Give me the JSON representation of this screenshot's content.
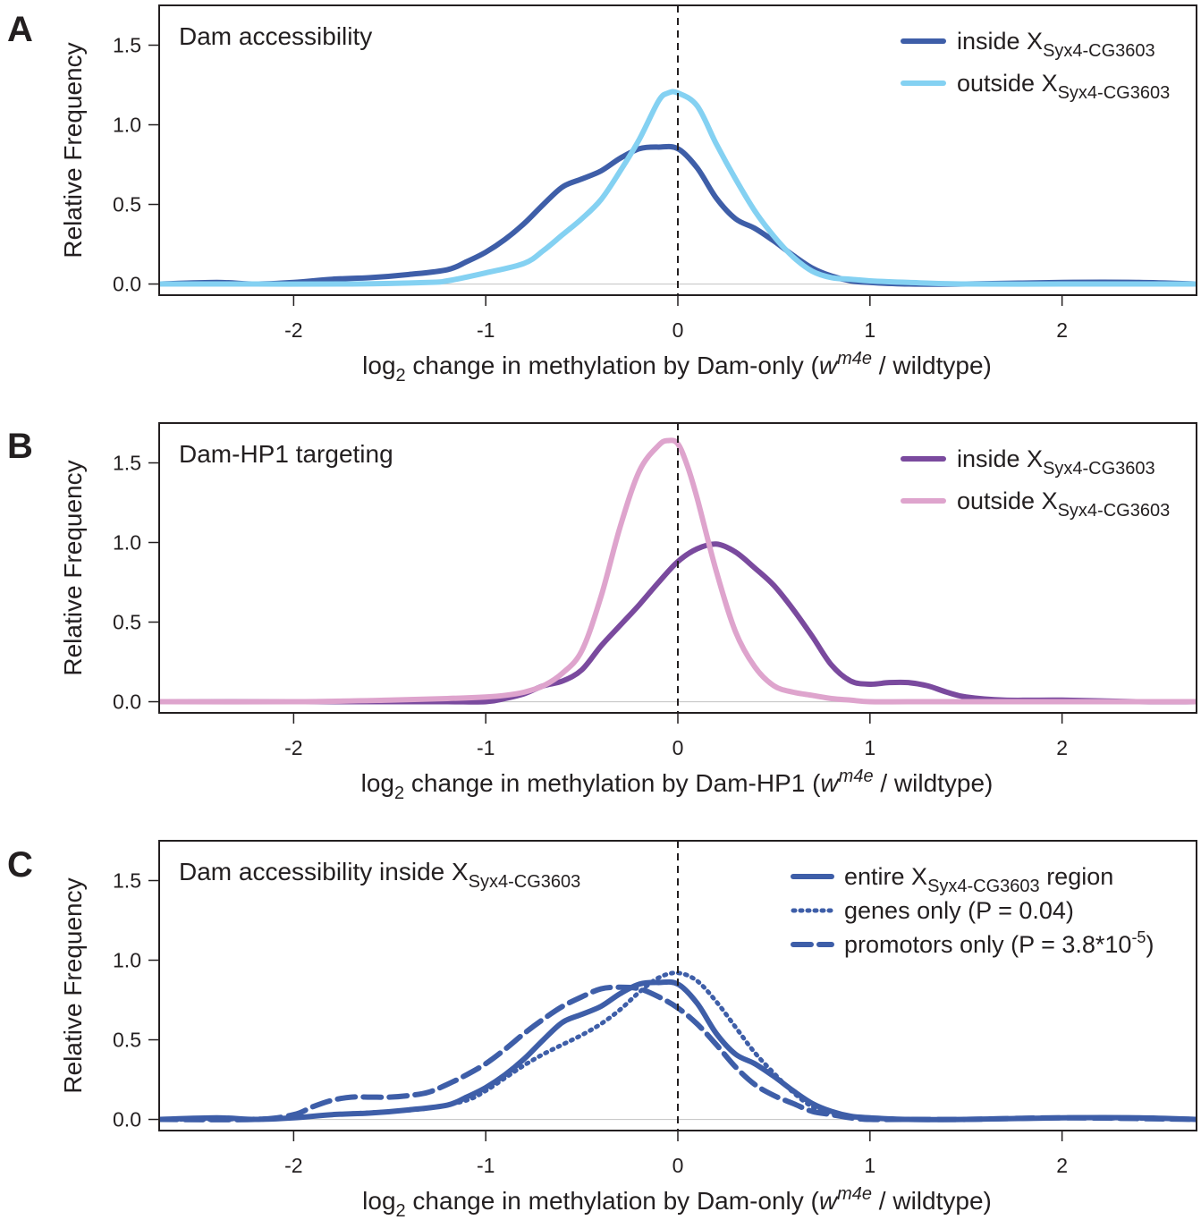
{
  "chart_data": [
    {
      "panel": "A",
      "type": "line",
      "title": "Dam accessibility",
      "title_sub": "",
      "ylabel": "Relative Frequency",
      "xlabel": {
        "pre": "log",
        "sub": "2",
        "mid": " change in methylation by Dam-only (",
        "italic": "w",
        "sup": "m4e",
        "post": " / wildtype)"
      },
      "xlim": [
        -2.7,
        2.7
      ],
      "ylim": [
        -0.07,
        1.75
      ],
      "xticks": [
        "-2",
        "-1",
        "0",
        "1",
        "2"
      ],
      "yticks": [
        "0.0",
        "0.5",
        "1.0",
        "1.5"
      ],
      "vline_x": 0,
      "legend_position": "top-right",
      "series": [
        {
          "name": "inside X",
          "name_sub": "Syx4-CG3603",
          "name_post": "",
          "color": "#3e5ea8",
          "dash": "solid",
          "x": [
            -2.7,
            -2.4,
            -2.2,
            -2.0,
            -1.8,
            -1.6,
            -1.4,
            -1.2,
            -1.1,
            -1.0,
            -0.9,
            -0.8,
            -0.7,
            -0.6,
            -0.5,
            -0.4,
            -0.3,
            -0.2,
            -0.1,
            0.0,
            0.1,
            0.2,
            0.3,
            0.4,
            0.5,
            0.6,
            0.7,
            0.8,
            0.9,
            1.0,
            1.2,
            1.5,
            2.0,
            2.4,
            2.7
          ],
          "y": [
            0.0,
            0.01,
            0.0,
            0.01,
            0.03,
            0.04,
            0.06,
            0.09,
            0.14,
            0.2,
            0.28,
            0.38,
            0.5,
            0.61,
            0.66,
            0.71,
            0.79,
            0.85,
            0.86,
            0.85,
            0.73,
            0.54,
            0.41,
            0.35,
            0.27,
            0.18,
            0.1,
            0.05,
            0.02,
            0.01,
            0.0,
            0.0,
            0.01,
            0.01,
            0.0
          ]
        },
        {
          "name": "outside X",
          "name_sub": "Syx4-CG3603",
          "name_post": "",
          "color": "#84d1f2",
          "dash": "solid",
          "x": [
            -2.7,
            -2.2,
            -1.7,
            -1.3,
            -1.2,
            -1.0,
            -0.8,
            -0.7,
            -0.6,
            -0.5,
            -0.4,
            -0.3,
            -0.2,
            -0.1,
            -0.05,
            0.0,
            0.1,
            0.2,
            0.3,
            0.4,
            0.5,
            0.6,
            0.7,
            0.8,
            0.9,
            1.0,
            1.2,
            1.5,
            2.0,
            2.4,
            2.7
          ],
          "y": [
            0.0,
            0.0,
            0.0,
            0.01,
            0.02,
            0.07,
            0.13,
            0.21,
            0.31,
            0.41,
            0.53,
            0.71,
            0.91,
            1.15,
            1.2,
            1.2,
            1.12,
            0.88,
            0.66,
            0.46,
            0.3,
            0.17,
            0.08,
            0.04,
            0.03,
            0.02,
            0.01,
            0.0,
            0.0,
            0.0,
            0.0
          ]
        }
      ]
    },
    {
      "panel": "B",
      "type": "line",
      "title": "Dam-HP1 targeting",
      "title_sub": "",
      "ylabel": "Relative Frequency",
      "xlabel": {
        "pre": "log",
        "sub": "2",
        "mid": " change in methylation by Dam-HP1 (",
        "italic": "w",
        "sup": "m4e",
        "post": " / wildtype)"
      },
      "xlim": [
        -2.7,
        2.7
      ],
      "ylim": [
        -0.07,
        1.75
      ],
      "xticks": [
        "-2",
        "-1",
        "0",
        "1",
        "2"
      ],
      "yticks": [
        "0.0",
        "0.5",
        "1.0",
        "1.5"
      ],
      "vline_x": 0,
      "legend_position": "top-right",
      "series": [
        {
          "name": "inside X",
          "name_sub": "Syx4-CG3603",
          "name_post": "",
          "color": "#7a4a9e",
          "dash": "solid",
          "x": [
            -2.7,
            -2.0,
            -1.5,
            -1.2,
            -1.0,
            -0.9,
            -0.8,
            -0.7,
            -0.6,
            -0.5,
            -0.4,
            -0.3,
            -0.2,
            -0.1,
            0.0,
            0.1,
            0.2,
            0.3,
            0.4,
            0.5,
            0.6,
            0.7,
            0.8,
            0.9,
            1.0,
            1.1,
            1.2,
            1.3,
            1.4,
            1.5,
            1.7,
            2.0,
            2.4,
            2.7
          ],
          "y": [
            0.0,
            0.0,
            0.0,
            0.0,
            0.0,
            0.02,
            0.05,
            0.1,
            0.13,
            0.2,
            0.35,
            0.48,
            0.61,
            0.75,
            0.88,
            0.96,
            0.99,
            0.94,
            0.84,
            0.73,
            0.58,
            0.41,
            0.23,
            0.13,
            0.11,
            0.12,
            0.12,
            0.1,
            0.06,
            0.03,
            0.01,
            0.01,
            0.0,
            0.0
          ]
        },
        {
          "name": "outside X",
          "name_sub": "Syx4-CG3603",
          "name_post": "",
          "color": "#dea4cd",
          "dash": "solid",
          "x": [
            -2.7,
            -2.0,
            -1.5,
            -1.2,
            -1.0,
            -0.9,
            -0.8,
            -0.7,
            -0.6,
            -0.5,
            -0.4,
            -0.3,
            -0.2,
            -0.1,
            -0.05,
            0.0,
            0.05,
            0.1,
            0.2,
            0.3,
            0.4,
            0.5,
            0.6,
            0.7,
            0.8,
            0.9,
            1.0,
            1.2,
            1.5,
            2.0,
            2.4,
            2.7
          ],
          "y": [
            0.0,
            0.0,
            0.01,
            0.02,
            0.03,
            0.04,
            0.06,
            0.1,
            0.18,
            0.32,
            0.66,
            1.1,
            1.45,
            1.61,
            1.64,
            1.62,
            1.48,
            1.28,
            0.82,
            0.44,
            0.22,
            0.1,
            0.06,
            0.04,
            0.02,
            0.01,
            0.0,
            0.0,
            0.0,
            0.0,
            0.0,
            0.0
          ]
        }
      ]
    },
    {
      "panel": "C",
      "type": "line",
      "title": "Dam accessibility inside X",
      "title_sub": "Syx4-CG3603",
      "ylabel": "Relative Frequency",
      "xlabel": {
        "pre": "log",
        "sub": "2",
        "mid": " change in methylation by Dam-only (",
        "italic": "w",
        "sup": "m4e",
        "post": " / wildtype)"
      },
      "xlim": [
        -2.7,
        2.7
      ],
      "ylim": [
        -0.07,
        1.75
      ],
      "xticks": [
        "-2",
        "-1",
        "0",
        "1",
        "2"
      ],
      "yticks": [
        "0.0",
        "0.5",
        "1.0",
        "1.5"
      ],
      "vline_x": 0,
      "legend_position": "top-right",
      "series": [
        {
          "name": "entire X",
          "name_sub": "Syx4-CG3603",
          "name_post": " region",
          "color": "#3e5ea8",
          "dash": "solid",
          "x": [
            -2.7,
            -2.4,
            -2.2,
            -2.0,
            -1.8,
            -1.6,
            -1.4,
            -1.2,
            -1.1,
            -1.0,
            -0.9,
            -0.8,
            -0.7,
            -0.6,
            -0.5,
            -0.4,
            -0.3,
            -0.2,
            -0.1,
            0.0,
            0.1,
            0.2,
            0.3,
            0.4,
            0.5,
            0.6,
            0.7,
            0.8,
            0.9,
            1.0,
            1.2,
            1.5,
            2.0,
            2.4,
            2.7
          ],
          "y": [
            0.0,
            0.01,
            0.0,
            0.01,
            0.03,
            0.04,
            0.06,
            0.09,
            0.14,
            0.2,
            0.28,
            0.38,
            0.5,
            0.61,
            0.66,
            0.71,
            0.79,
            0.85,
            0.86,
            0.85,
            0.73,
            0.54,
            0.41,
            0.35,
            0.27,
            0.18,
            0.1,
            0.05,
            0.02,
            0.01,
            0.0,
            0.0,
            0.01,
            0.01,
            0.0
          ]
        },
        {
          "name": "genes only (P = 0.04)",
          "name_sub": "",
          "name_post": "",
          "color": "#3e5ea8",
          "dash": "dotted",
          "x": [
            -2.7,
            -2.4,
            -2.0,
            -1.8,
            -1.5,
            -1.3,
            -1.1,
            -1.0,
            -0.9,
            -0.8,
            -0.7,
            -0.6,
            -0.5,
            -0.4,
            -0.3,
            -0.2,
            -0.1,
            0.0,
            0.1,
            0.2,
            0.3,
            0.4,
            0.5,
            0.6,
            0.7,
            0.8,
            0.9,
            1.0,
            1.2,
            1.5,
            2.0,
            2.7
          ],
          "y": [
            0.0,
            0.0,
            0.01,
            0.03,
            0.05,
            0.07,
            0.12,
            0.18,
            0.26,
            0.34,
            0.41,
            0.47,
            0.53,
            0.6,
            0.69,
            0.8,
            0.89,
            0.92,
            0.87,
            0.74,
            0.58,
            0.42,
            0.29,
            0.17,
            0.08,
            0.04,
            0.02,
            0.01,
            0.0,
            0.0,
            0.01,
            0.0
          ]
        },
        {
          "name": "promotors only (P = 3.8*10",
          "name_sub": "",
          "name_post": ")",
          "name_sup": "-5",
          "color": "#3e5ea8",
          "dash": "dashed",
          "x": [
            -2.7,
            -2.2,
            -2.0,
            -1.9,
            -1.8,
            -1.7,
            -1.6,
            -1.5,
            -1.4,
            -1.3,
            -1.2,
            -1.1,
            -1.0,
            -0.9,
            -0.8,
            -0.7,
            -0.6,
            -0.5,
            -0.4,
            -0.3,
            -0.2,
            -0.1,
            0.0,
            0.1,
            0.2,
            0.3,
            0.4,
            0.5,
            0.6,
            0.7,
            0.8,
            0.9,
            1.0,
            1.2,
            1.5,
            2.0,
            2.7
          ],
          "y": [
            0.0,
            0.0,
            0.03,
            0.08,
            0.12,
            0.14,
            0.14,
            0.14,
            0.15,
            0.17,
            0.22,
            0.28,
            0.35,
            0.44,
            0.54,
            0.63,
            0.71,
            0.77,
            0.82,
            0.83,
            0.82,
            0.77,
            0.7,
            0.6,
            0.47,
            0.33,
            0.22,
            0.15,
            0.1,
            0.05,
            0.03,
            0.01,
            0.0,
            0.0,
            0.0,
            0.01,
            0.0
          ]
        }
      ]
    }
  ]
}
